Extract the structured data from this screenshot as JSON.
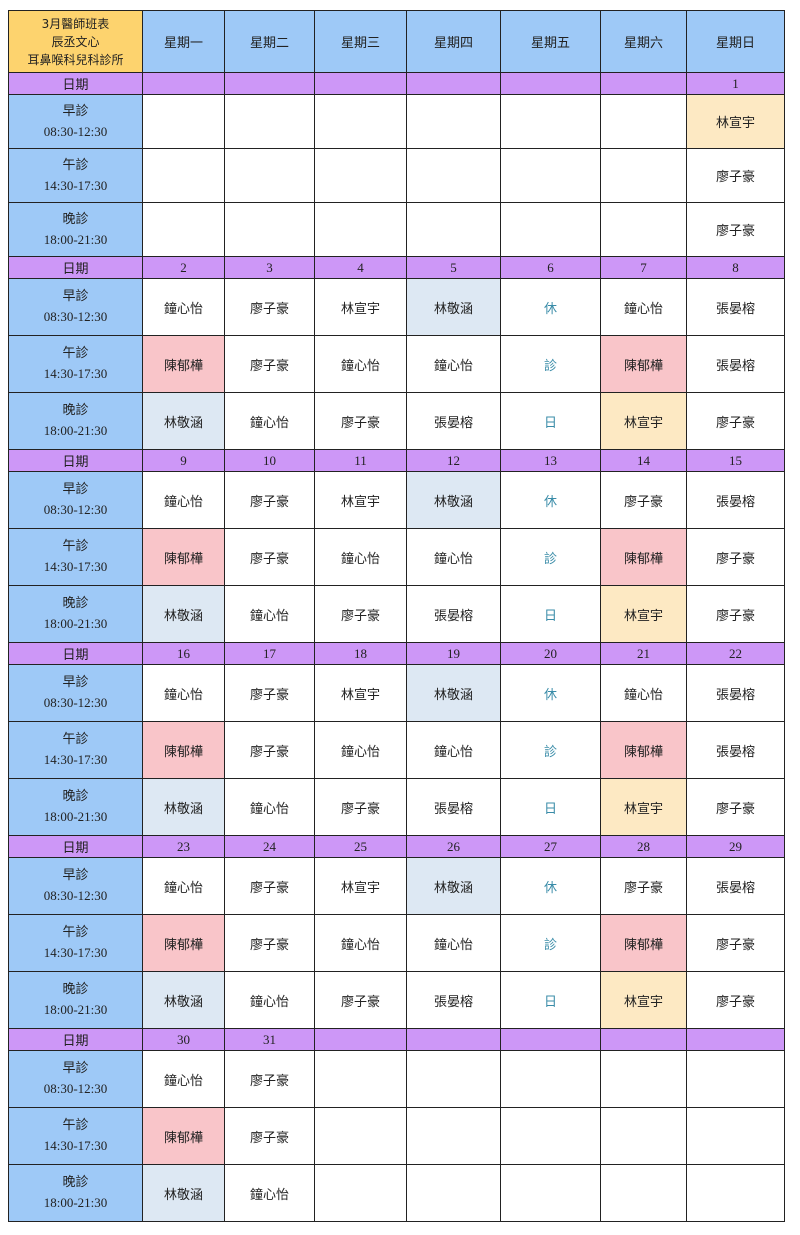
{
  "title_lines": [
    "3月醫師班表",
    "辰丞文心",
    "耳鼻喉科兒科診所"
  ],
  "weekdays": [
    "星期一",
    "星期二",
    "星期三",
    "星期四",
    "星期五",
    "星期六",
    "星期日"
  ],
  "date_label": "日期",
  "shifts": [
    {
      "name": "早診",
      "time": "08:30-12:30"
    },
    {
      "name": "午診",
      "time": "14:30-17:30"
    },
    {
      "name": "晚診",
      "time": "18:00-21:30"
    }
  ],
  "highlight_colors": {
    "blue": "#dde8f3",
    "pink": "#f9c5c9",
    "yellow": "#fde9c3",
    "closed_text": "#3a8ca8"
  },
  "weeks": [
    {
      "dates": [
        "",
        "",
        "",
        "",
        "",
        "",
        "1"
      ],
      "rows": [
        [
          {
            "n": ""
          },
          {
            "n": ""
          },
          {
            "n": ""
          },
          {
            "n": ""
          },
          {
            "n": ""
          },
          {
            "n": ""
          },
          {
            "n": "林宣宇",
            "h": "yellow"
          }
        ],
        [
          {
            "n": ""
          },
          {
            "n": ""
          },
          {
            "n": ""
          },
          {
            "n": ""
          },
          {
            "n": ""
          },
          {
            "n": ""
          },
          {
            "n": "廖子豪"
          }
        ],
        [
          {
            "n": ""
          },
          {
            "n": ""
          },
          {
            "n": ""
          },
          {
            "n": ""
          },
          {
            "n": ""
          },
          {
            "n": ""
          },
          {
            "n": "廖子豪"
          }
        ]
      ]
    },
    {
      "dates": [
        "2",
        "3",
        "4",
        "5",
        "6",
        "7",
        "8"
      ],
      "rows": [
        [
          {
            "n": "鐘心怡"
          },
          {
            "n": "廖子豪"
          },
          {
            "n": "林宣宇"
          },
          {
            "n": "林敬涵",
            "h": "blue"
          },
          {
            "n": "休",
            "h": "closed"
          },
          {
            "n": "鐘心怡"
          },
          {
            "n": "張晏榕"
          }
        ],
        [
          {
            "n": "陳郁樺",
            "h": "pink"
          },
          {
            "n": "廖子豪"
          },
          {
            "n": "鐘心怡"
          },
          {
            "n": "鐘心怡"
          },
          {
            "n": "診",
            "h": "closed"
          },
          {
            "n": "陳郁樺",
            "h": "pink"
          },
          {
            "n": "張晏榕"
          }
        ],
        [
          {
            "n": "林敬涵",
            "h": "blue"
          },
          {
            "n": "鐘心怡"
          },
          {
            "n": "廖子豪"
          },
          {
            "n": "張晏榕"
          },
          {
            "n": "日",
            "h": "closed"
          },
          {
            "n": "林宣宇",
            "h": "yellow"
          },
          {
            "n": "廖子豪"
          }
        ]
      ]
    },
    {
      "dates": [
        "9",
        "10",
        "11",
        "12",
        "13",
        "14",
        "15"
      ],
      "rows": [
        [
          {
            "n": "鐘心怡"
          },
          {
            "n": "廖子豪"
          },
          {
            "n": "林宣宇"
          },
          {
            "n": "林敬涵",
            "h": "blue"
          },
          {
            "n": "休",
            "h": "closed"
          },
          {
            "n": "廖子豪"
          },
          {
            "n": "張晏榕"
          }
        ],
        [
          {
            "n": "陳郁樺",
            "h": "pink"
          },
          {
            "n": "廖子豪"
          },
          {
            "n": "鐘心怡"
          },
          {
            "n": "鐘心怡"
          },
          {
            "n": "診",
            "h": "closed"
          },
          {
            "n": "陳郁樺",
            "h": "pink"
          },
          {
            "n": "廖子豪"
          }
        ],
        [
          {
            "n": "林敬涵",
            "h": "blue"
          },
          {
            "n": "鐘心怡"
          },
          {
            "n": "廖子豪"
          },
          {
            "n": "張晏榕"
          },
          {
            "n": "日",
            "h": "closed"
          },
          {
            "n": "林宣宇",
            "h": "yellow"
          },
          {
            "n": "廖子豪"
          }
        ]
      ]
    },
    {
      "dates": [
        "16",
        "17",
        "18",
        "19",
        "20",
        "21",
        "22"
      ],
      "rows": [
        [
          {
            "n": "鐘心怡"
          },
          {
            "n": "廖子豪"
          },
          {
            "n": "林宣宇"
          },
          {
            "n": "林敬涵",
            "h": "blue"
          },
          {
            "n": "休",
            "h": "closed"
          },
          {
            "n": "鐘心怡"
          },
          {
            "n": "張晏榕"
          }
        ],
        [
          {
            "n": "陳郁樺",
            "h": "pink"
          },
          {
            "n": "廖子豪"
          },
          {
            "n": "鐘心怡"
          },
          {
            "n": "鐘心怡"
          },
          {
            "n": "診",
            "h": "closed"
          },
          {
            "n": "陳郁樺",
            "h": "pink"
          },
          {
            "n": "張晏榕"
          }
        ],
        [
          {
            "n": "林敬涵",
            "h": "blue"
          },
          {
            "n": "鐘心怡"
          },
          {
            "n": "廖子豪"
          },
          {
            "n": "張晏榕"
          },
          {
            "n": "日",
            "h": "closed"
          },
          {
            "n": "林宣宇",
            "h": "yellow"
          },
          {
            "n": "廖子豪"
          }
        ]
      ]
    },
    {
      "dates": [
        "23",
        "24",
        "25",
        "26",
        "27",
        "28",
        "29"
      ],
      "rows": [
        [
          {
            "n": "鐘心怡"
          },
          {
            "n": "廖子豪"
          },
          {
            "n": "林宣宇"
          },
          {
            "n": "林敬涵",
            "h": "blue"
          },
          {
            "n": "休",
            "h": "closed"
          },
          {
            "n": "廖子豪"
          },
          {
            "n": "張晏榕"
          }
        ],
        [
          {
            "n": "陳郁樺",
            "h": "pink"
          },
          {
            "n": "廖子豪"
          },
          {
            "n": "鐘心怡"
          },
          {
            "n": "鐘心怡"
          },
          {
            "n": "診",
            "h": "closed"
          },
          {
            "n": "陳郁樺",
            "h": "pink"
          },
          {
            "n": "廖子豪"
          }
        ],
        [
          {
            "n": "林敬涵",
            "h": "blue"
          },
          {
            "n": "鐘心怡"
          },
          {
            "n": "廖子豪"
          },
          {
            "n": "張晏榕"
          },
          {
            "n": "日",
            "h": "closed"
          },
          {
            "n": "林宣宇",
            "h": "yellow"
          },
          {
            "n": "廖子豪"
          }
        ]
      ]
    },
    {
      "dates": [
        "30",
        "31",
        "",
        "",
        "",
        "",
        ""
      ],
      "rows": [
        [
          {
            "n": "鐘心怡"
          },
          {
            "n": "廖子豪"
          },
          {
            "n": ""
          },
          {
            "n": ""
          },
          {
            "n": ""
          },
          {
            "n": ""
          },
          {
            "n": ""
          }
        ],
        [
          {
            "n": "陳郁樺",
            "h": "pink"
          },
          {
            "n": "廖子豪"
          },
          {
            "n": ""
          },
          {
            "n": ""
          },
          {
            "n": ""
          },
          {
            "n": ""
          },
          {
            "n": ""
          }
        ],
        [
          {
            "n": "林敬涵",
            "h": "blue"
          },
          {
            "n": "鐘心怡"
          },
          {
            "n": ""
          },
          {
            "n": ""
          },
          {
            "n": ""
          },
          {
            "n": ""
          },
          {
            "n": ""
          }
        ]
      ]
    }
  ]
}
